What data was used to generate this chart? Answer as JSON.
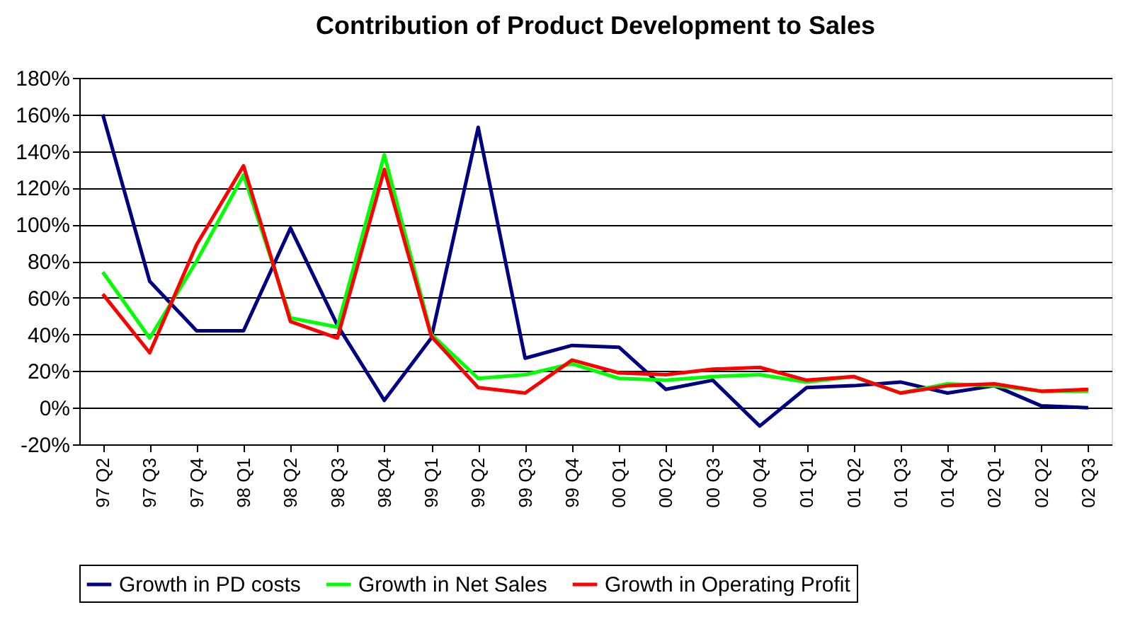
{
  "chart_data": {
    "type": "line",
    "title": "Contribution of Product Development to Sales",
    "categories": [
      "97 Q2",
      "97 Q3",
      "97 Q4",
      "98 Q1",
      "98 Q2",
      "98 Q3",
      "98 Q4",
      "99 Q1",
      "99 Q2",
      "99 Q3",
      "99 Q4",
      "00 Q1",
      "00 Q2",
      "00 Q3",
      "00 Q4",
      "01 Q1",
      "01 Q2",
      "01 Q3",
      "01 Q4",
      "02 Q1",
      "02 Q2",
      "02 Q3"
    ],
    "series": [
      {
        "name": "Growth in PD costs",
        "color": "#000080",
        "values": [
          160,
          69,
          42,
          42,
          98,
          45,
          4,
          38,
          153,
          27,
          34,
          33,
          10,
          15,
          -10,
          11,
          12,
          14,
          8,
          12,
          1,
          0
        ]
      },
      {
        "name": "Growth in Net Sales",
        "color": "#00ff00",
        "values": [
          74,
          38,
          80,
          127,
          49,
          44,
          138,
          40,
          16,
          18,
          24,
          16,
          15,
          17,
          18,
          14,
          17,
          8,
          13,
          12,
          9,
          9
        ]
      },
      {
        "name": "Growth in Operating Profit",
        "color": "#ff0000",
        "values": [
          62,
          30,
          89,
          132,
          47,
          38,
          130,
          39,
          11,
          8,
          26,
          19,
          18,
          21,
          22,
          15,
          17,
          8,
          12,
          13,
          9,
          10
        ]
      }
    ],
    "ylim": [
      -20,
      180
    ],
    "yticks": [
      {
        "value": -20,
        "label": "-20%"
      },
      {
        "value": 0,
        "label": "0%"
      },
      {
        "value": 20,
        "label": "20%"
      },
      {
        "value": 40,
        "label": "40%"
      },
      {
        "value": 60,
        "label": "60%"
      },
      {
        "value": 80,
        "label": "80%"
      },
      {
        "value": 100,
        "label": "100%"
      },
      {
        "value": 120,
        "label": "120%"
      },
      {
        "value": 140,
        "label": "140%"
      },
      {
        "value": 160,
        "label": "160%"
      },
      {
        "value": 180,
        "label": "180%"
      }
    ],
    "grid": "y",
    "legend": "bottom left",
    "marker": "none",
    "line_style": "solid"
  }
}
